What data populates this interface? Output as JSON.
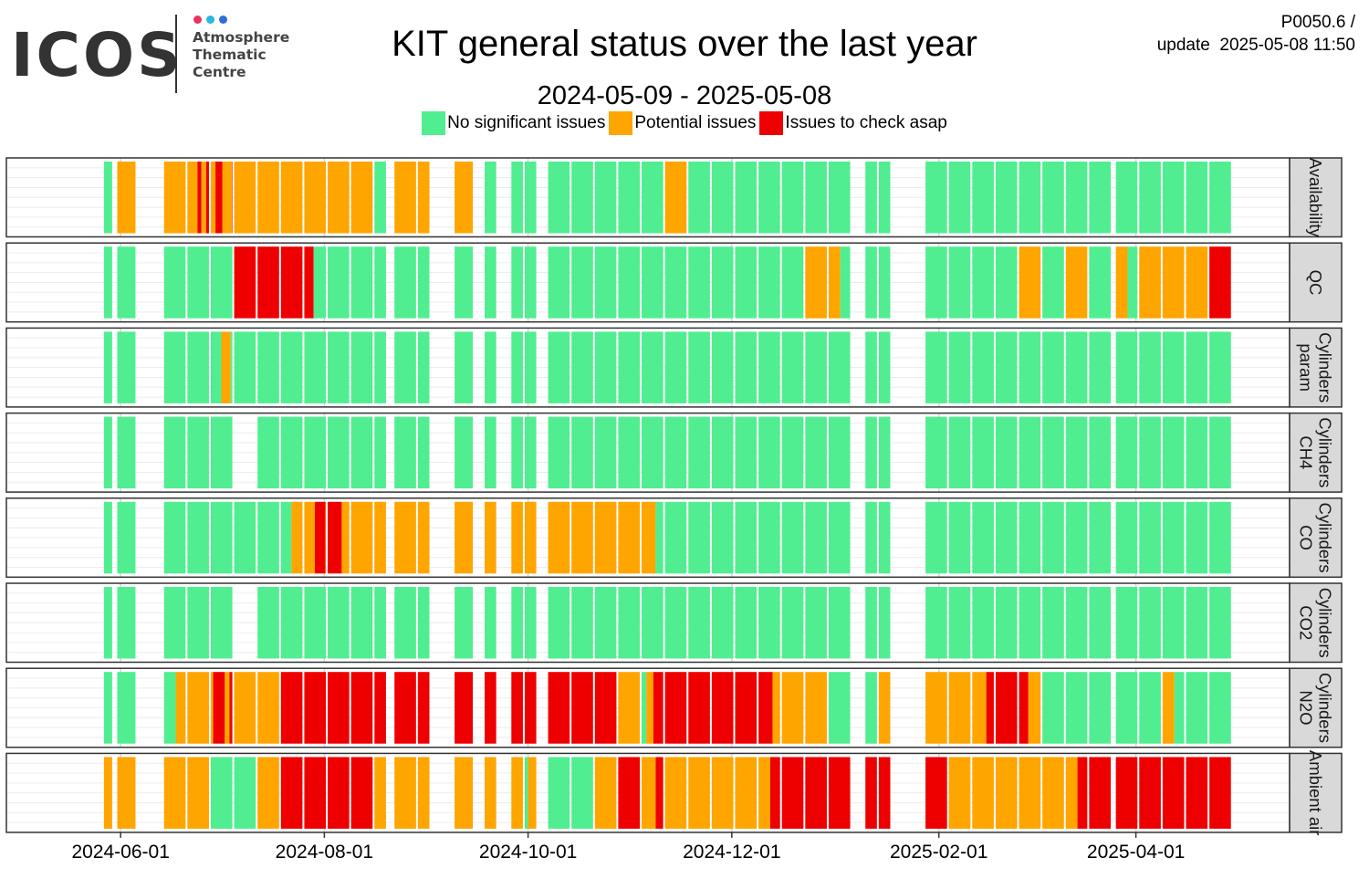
{
  "header": {
    "title": "KIT general status over the last year",
    "subtitle": "2024-05-09 - 2025-05-08",
    "version": "P0050.6 /",
    "update_label": "update",
    "update_time": "2025-05-08 11:50"
  },
  "logo": {
    "wordmark": "ICOS",
    "lines": [
      "Atmosphere",
      "Thematic",
      "Centre"
    ],
    "dot_colors": [
      "#e8335f",
      "#2bb5e8",
      "#2f6ed8"
    ],
    "text_color": "#333333"
  },
  "legend": {
    "items": [
      {
        "label": "No significant issues",
        "color": "#50ee90"
      },
      {
        "label": "Potential issues",
        "color": "#ffa500"
      },
      {
        "label": "Issues to check asap",
        "color": "#ee0000"
      }
    ]
  },
  "chart_data": {
    "type": "heatmap",
    "date_range": [
      "2024-05-09",
      "2025-05-08"
    ],
    "x_ticks": [
      "2024-06-01",
      "2024-08-01",
      "2024-10-01",
      "2024-12-01",
      "2025-02-01",
      "2025-04-01"
    ],
    "status_colors": {
      "G": "#50ee90",
      "O": "#ffa500",
      "R": "#ee0000"
    },
    "blocks": [
      {
        "start": "2024-05-27",
        "end": "2024-05-30"
      },
      {
        "start": "2024-05-31",
        "end": "2024-06-06"
      },
      {
        "start": "2024-06-14",
        "end": "2024-06-21"
      },
      {
        "start": "2024-06-21",
        "end": "2024-06-28"
      },
      {
        "start": "2024-06-28",
        "end": "2024-07-05"
      },
      {
        "start": "2024-07-05",
        "end": "2024-07-12"
      },
      {
        "start": "2024-07-12",
        "end": "2024-07-19"
      },
      {
        "start": "2024-07-19",
        "end": "2024-07-26"
      },
      {
        "start": "2024-07-26",
        "end": "2024-08-02"
      },
      {
        "start": "2024-08-02",
        "end": "2024-08-09"
      },
      {
        "start": "2024-08-09",
        "end": "2024-08-16"
      },
      {
        "start": "2024-08-16",
        "end": "2024-08-20"
      },
      {
        "start": "2024-08-22",
        "end": "2024-08-29"
      },
      {
        "start": "2024-08-29",
        "end": "2024-09-02"
      },
      {
        "start": "2024-09-09",
        "end": "2024-09-15"
      },
      {
        "start": "2024-09-18",
        "end": "2024-09-22"
      },
      {
        "start": "2024-09-26",
        "end": "2024-09-30"
      },
      {
        "start": "2024-09-30",
        "end": "2024-10-04"
      },
      {
        "start": "2024-10-07",
        "end": "2024-10-14"
      },
      {
        "start": "2024-10-14",
        "end": "2024-10-21"
      },
      {
        "start": "2024-10-21",
        "end": "2024-10-28"
      },
      {
        "start": "2024-10-28",
        "end": "2024-11-04"
      },
      {
        "start": "2024-11-04",
        "end": "2024-11-11"
      },
      {
        "start": "2024-11-11",
        "end": "2024-11-18"
      },
      {
        "start": "2024-11-18",
        "end": "2024-11-25"
      },
      {
        "start": "2024-11-25",
        "end": "2024-12-02"
      },
      {
        "start": "2024-12-02",
        "end": "2024-12-09"
      },
      {
        "start": "2024-12-09",
        "end": "2024-12-16"
      },
      {
        "start": "2024-12-16",
        "end": "2024-12-23"
      },
      {
        "start": "2024-12-23",
        "end": "2024-12-30"
      },
      {
        "start": "2024-12-30",
        "end": "2025-01-06"
      },
      {
        "start": "2025-01-10",
        "end": "2025-01-14"
      },
      {
        "start": "2025-01-14",
        "end": "2025-01-18"
      },
      {
        "start": "2025-01-28",
        "end": "2025-02-04"
      },
      {
        "start": "2025-02-04",
        "end": "2025-02-11"
      },
      {
        "start": "2025-02-11",
        "end": "2025-02-18"
      },
      {
        "start": "2025-02-18",
        "end": "2025-02-25"
      },
      {
        "start": "2025-02-25",
        "end": "2025-03-04"
      },
      {
        "start": "2025-03-04",
        "end": "2025-03-11"
      },
      {
        "start": "2025-03-11",
        "end": "2025-03-18"
      },
      {
        "start": "2025-03-18",
        "end": "2025-03-25"
      },
      {
        "start": "2025-03-26",
        "end": "2025-04-02"
      },
      {
        "start": "2025-04-02",
        "end": "2025-04-09"
      },
      {
        "start": "2025-04-09",
        "end": "2025-04-16"
      },
      {
        "start": "2025-04-16",
        "end": "2025-04-23"
      },
      {
        "start": "2025-04-23",
        "end": "2025-04-30"
      }
    ],
    "rows": [
      {
        "label_lines": [
          "Availability"
        ],
        "status": [
          "G",
          "O",
          "O",
          "OROR",
          "OROR",
          "O",
          "O",
          "O",
          "O",
          "O",
          "O",
          "G",
          "O",
          "O",
          "O",
          "G",
          "G",
          "G",
          "G",
          "G",
          "G",
          "G",
          "G",
          "O",
          "G",
          "G",
          "G",
          "G",
          "G",
          "G",
          "G",
          "G",
          "G",
          "G",
          "G",
          "G",
          "G",
          "G",
          "G",
          "G",
          "G",
          "G",
          "G",
          "G",
          "G",
          "G"
        ],
        "splits": [
          null,
          null,
          null,
          [
            0,
            0.43,
            0.6,
            0.8
          ],
          [
            0,
            0.2,
            0.5,
            0.9
          ],
          null,
          null,
          null,
          null,
          null,
          null,
          null,
          null,
          null,
          null,
          null,
          null,
          null,
          null,
          null,
          null,
          null,
          null,
          [
            0,
            0.2
          ],
          null,
          null,
          null,
          null,
          null,
          null,
          null,
          null,
          null,
          null,
          null,
          null,
          null,
          null,
          null,
          null,
          null,
          null,
          null,
          null,
          null,
          null
        ]
      },
      {
        "label_lines": [
          "QC"
        ],
        "status": [
          "G",
          "G",
          "G",
          "G",
          "G",
          "R",
          "R",
          "R",
          "RG",
          "G",
          "G",
          "G",
          "G",
          "G",
          "G",
          "G",
          "G",
          "G",
          "G",
          "G",
          "G",
          "G",
          "G",
          "G",
          "G",
          "G",
          "G",
          "G",
          "G",
          "O",
          "OG",
          "G",
          "G",
          "G",
          "G",
          "G",
          "G",
          "O",
          "G",
          "O",
          "G",
          "OG",
          "O",
          "O",
          "O",
          "R"
        ],
        "splits": [
          null,
          null,
          null,
          null,
          null,
          null,
          null,
          null,
          [
            0,
            0.4
          ],
          null,
          null,
          null,
          null,
          null,
          null,
          null,
          null,
          null,
          null,
          null,
          null,
          null,
          null,
          null,
          null,
          null,
          null,
          null,
          null,
          null,
          [
            0,
            0.5
          ],
          null,
          null,
          null,
          null,
          null,
          null,
          null,
          null,
          null,
          null,
          [
            0,
            0.5
          ],
          null,
          null,
          null,
          null
        ]
      },
      {
        "label_lines": [
          "Cylinders",
          "param"
        ],
        "status": [
          "G",
          "G",
          "G",
          "G",
          "GOG",
          "G",
          "G",
          "G",
          "G",
          "G",
          "G",
          "G",
          "G",
          "G",
          "G",
          "G",
          "G",
          "G",
          "G",
          "G",
          "G",
          "G",
          "G",
          "G",
          "G",
          "G",
          "G",
          "G",
          "G",
          "G",
          "G",
          "G",
          "G",
          "G",
          "G",
          "G",
          "G",
          "G",
          "G",
          "G",
          "G",
          "G",
          "G",
          "G",
          "G",
          "G"
        ],
        "splits": [
          null,
          null,
          null,
          null,
          [
            0,
            0.45,
            0.85
          ],
          null,
          null,
          null,
          null,
          null,
          null,
          null,
          null,
          null,
          null,
          null,
          null,
          null,
          null,
          null,
          null,
          null,
          null,
          null,
          null,
          null,
          null,
          null,
          null,
          null,
          null,
          null,
          null,
          null,
          null,
          null,
          null,
          null,
          null,
          null,
          null,
          null,
          null,
          null,
          null,
          null
        ]
      },
      {
        "label_lines": [
          "Cylinders",
          "CH4"
        ],
        "status": [
          "G",
          "G",
          "G",
          "G",
          "G",
          "",
          "G",
          "G",
          "G",
          "G",
          "G",
          "G",
          "G",
          "G",
          "G",
          "G",
          "G",
          "G",
          "G",
          "G",
          "G",
          "G",
          "G",
          "G",
          "G",
          "G",
          "G",
          "G",
          "G",
          "G",
          "G",
          "G",
          "G",
          "G",
          "G",
          "G",
          "G",
          "G",
          "G",
          "G",
          "G",
          "G",
          "G",
          "G",
          "G",
          "G"
        ],
        "splits": []
      },
      {
        "label_lines": [
          "Cylinders",
          "CO"
        ],
        "status": [
          "G",
          "G",
          "G",
          "G",
          "G",
          "G",
          "G",
          "GO",
          "ORO",
          "RO",
          "O",
          "O",
          "O",
          "O",
          "O",
          "O",
          "O",
          "O",
          "O",
          "O",
          "O",
          "O",
          "OG",
          "G",
          "G",
          "G",
          "G",
          "G",
          "G",
          "G",
          "G",
          "G",
          "G",
          "G",
          "G",
          "G",
          "G",
          "G",
          "G",
          "G",
          "G",
          "G",
          "G",
          "G",
          "G",
          "G"
        ],
        "splits": [
          null,
          null,
          null,
          null,
          null,
          null,
          null,
          [
            0,
            0.45
          ],
          [
            0,
            0.45,
            0.9
          ],
          [
            0,
            0.6
          ],
          null,
          null,
          null,
          null,
          null,
          null,
          null,
          null,
          null,
          null,
          null,
          null,
          [
            0,
            0.6
          ],
          null,
          null,
          null,
          null,
          null,
          null,
          null,
          null,
          null,
          null,
          null,
          null,
          null,
          null,
          null,
          null,
          null,
          null,
          null,
          null,
          null,
          null,
          null
        ]
      },
      {
        "label_lines": [
          "Cylinders",
          "CO2"
        ],
        "status": [
          "G",
          "G",
          "G",
          "G",
          "G",
          "",
          "G",
          "G",
          "G",
          "G",
          "G",
          "G",
          "G",
          "G",
          "G",
          "G",
          "G",
          "G",
          "G",
          "G",
          "G",
          "G",
          "G",
          "G",
          "G",
          "G",
          "G",
          "G",
          "G",
          "G",
          "G",
          "G",
          "G",
          "G",
          "G",
          "G",
          "G",
          "G",
          "G",
          "G",
          "G",
          "G",
          "G",
          "G",
          "G",
          "G"
        ],
        "splits": []
      },
      {
        "label_lines": [
          "Cylinders",
          "N2O"
        ],
        "status": [
          "G",
          "G",
          "GO",
          "O",
          "OROR",
          "O",
          "O",
          "R",
          "R",
          "R",
          "R",
          "R",
          "R",
          "R",
          "R",
          "R",
          "R",
          "R",
          "R",
          "R",
          "R",
          "O",
          "GOR",
          "R",
          "R",
          "R",
          "R",
          "RO",
          "O",
          "O",
          "G",
          "G",
          "O",
          "O",
          "O",
          "OR",
          "R",
          "RO",
          "G",
          "G",
          "G",
          "G",
          "G",
          "OG",
          "G",
          "G"
        ],
        "splits": [
          null,
          null,
          [
            0,
            0.5
          ],
          null,
          [
            0,
            0.1,
            0.6,
            0.8
          ],
          null,
          null,
          null,
          null,
          null,
          null,
          null,
          null,
          null,
          null,
          null,
          null,
          null,
          null,
          null,
          null,
          null,
          [
            0,
            0.2,
            0.5
          ],
          null,
          null,
          null,
          null,
          [
            0,
            0.6
          ],
          null,
          null,
          null,
          null,
          null,
          null,
          null,
          [
            0,
            0.6
          ],
          null,
          [
            0,
            0.4
          ],
          null,
          null,
          null,
          null,
          null,
          [
            0,
            0.5
          ],
          null,
          null
        ]
      },
      {
        "label_lines": [
          "Ambient air"
        ],
        "status": [
          "O",
          "O",
          "O",
          "O",
          "G",
          "G",
          "O",
          "R",
          "R",
          "R",
          "R",
          "O",
          "O",
          "O",
          "O",
          "O",
          "O",
          "GO",
          "G",
          "G",
          "O",
          "R",
          "OR",
          "O",
          "O",
          "O",
          "O",
          "OR",
          "R",
          "R",
          "R",
          "R",
          "R",
          "R",
          "O",
          "O",
          "O",
          "O",
          "O",
          "OR",
          "R",
          "R",
          "R",
          "R",
          "R",
          "R"
        ],
        "splits": [
          null,
          null,
          null,
          null,
          null,
          null,
          null,
          null,
          null,
          null,
          null,
          null,
          null,
          null,
          null,
          null,
          null,
          [
            0,
            0.25
          ],
          null,
          null,
          null,
          null,
          [
            0,
            0.6
          ],
          null,
          null,
          null,
          null,
          [
            0,
            0.5
          ],
          null,
          null,
          null,
          null,
          null,
          null,
          null,
          null,
          null,
          null,
          null,
          [
            0,
            0.5
          ],
          null,
          null,
          null,
          null,
          null,
          null
        ]
      }
    ]
  }
}
